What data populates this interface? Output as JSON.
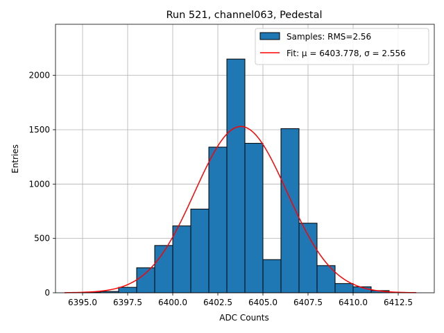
{
  "chart_data": {
    "type": "bar",
    "title": "Run 521, channel063, Pedestal",
    "xlabel": "ADC Counts",
    "ylabel": "Entries",
    "xlim": [
      6393.5,
      6414.5
    ],
    "ylim": [
      0,
      2470
    ],
    "xticks": [
      6395.0,
      6397.5,
      6400.0,
      6402.5,
      6405.0,
      6407.5,
      6410.0,
      6412.5
    ],
    "xtick_labels": [
      "6395.0",
      "6397.5",
      "6400.0",
      "6402.5",
      "6405.0",
      "6407.5",
      "6410.0",
      "6412.5"
    ],
    "yticks": [
      0,
      500,
      1000,
      1500,
      2000
    ],
    "ytick_labels": [
      "0",
      "500",
      "1000",
      "1500",
      "2000"
    ],
    "grid": true,
    "legend_position": "top-right",
    "histogram": {
      "name": "Samples: RMS=2.56",
      "color": "#1f77b4",
      "edge_color": "#000000",
      "bin_edges": [
        6395.0,
        6396.0,
        6397.0,
        6398.0,
        6399.0,
        6400.0,
        6401.0,
        6402.0,
        6403.0,
        6404.0,
        6405.0,
        6406.0,
        6407.0,
        6408.0,
        6409.0,
        6410.0,
        6411.0,
        6412.0
      ],
      "counts": [
        5,
        12,
        50,
        230,
        435,
        615,
        770,
        1340,
        2150,
        1375,
        305,
        1510,
        640,
        250,
        85,
        55,
        20
      ]
    },
    "fit": {
      "name": "Fit: μ = 6403.778, σ = 2.556",
      "color": "#ff0000",
      "mu": 6403.778,
      "sigma": 2.556,
      "amplitude": 1530,
      "x_range": [
        6394.0,
        6413.5
      ]
    }
  }
}
